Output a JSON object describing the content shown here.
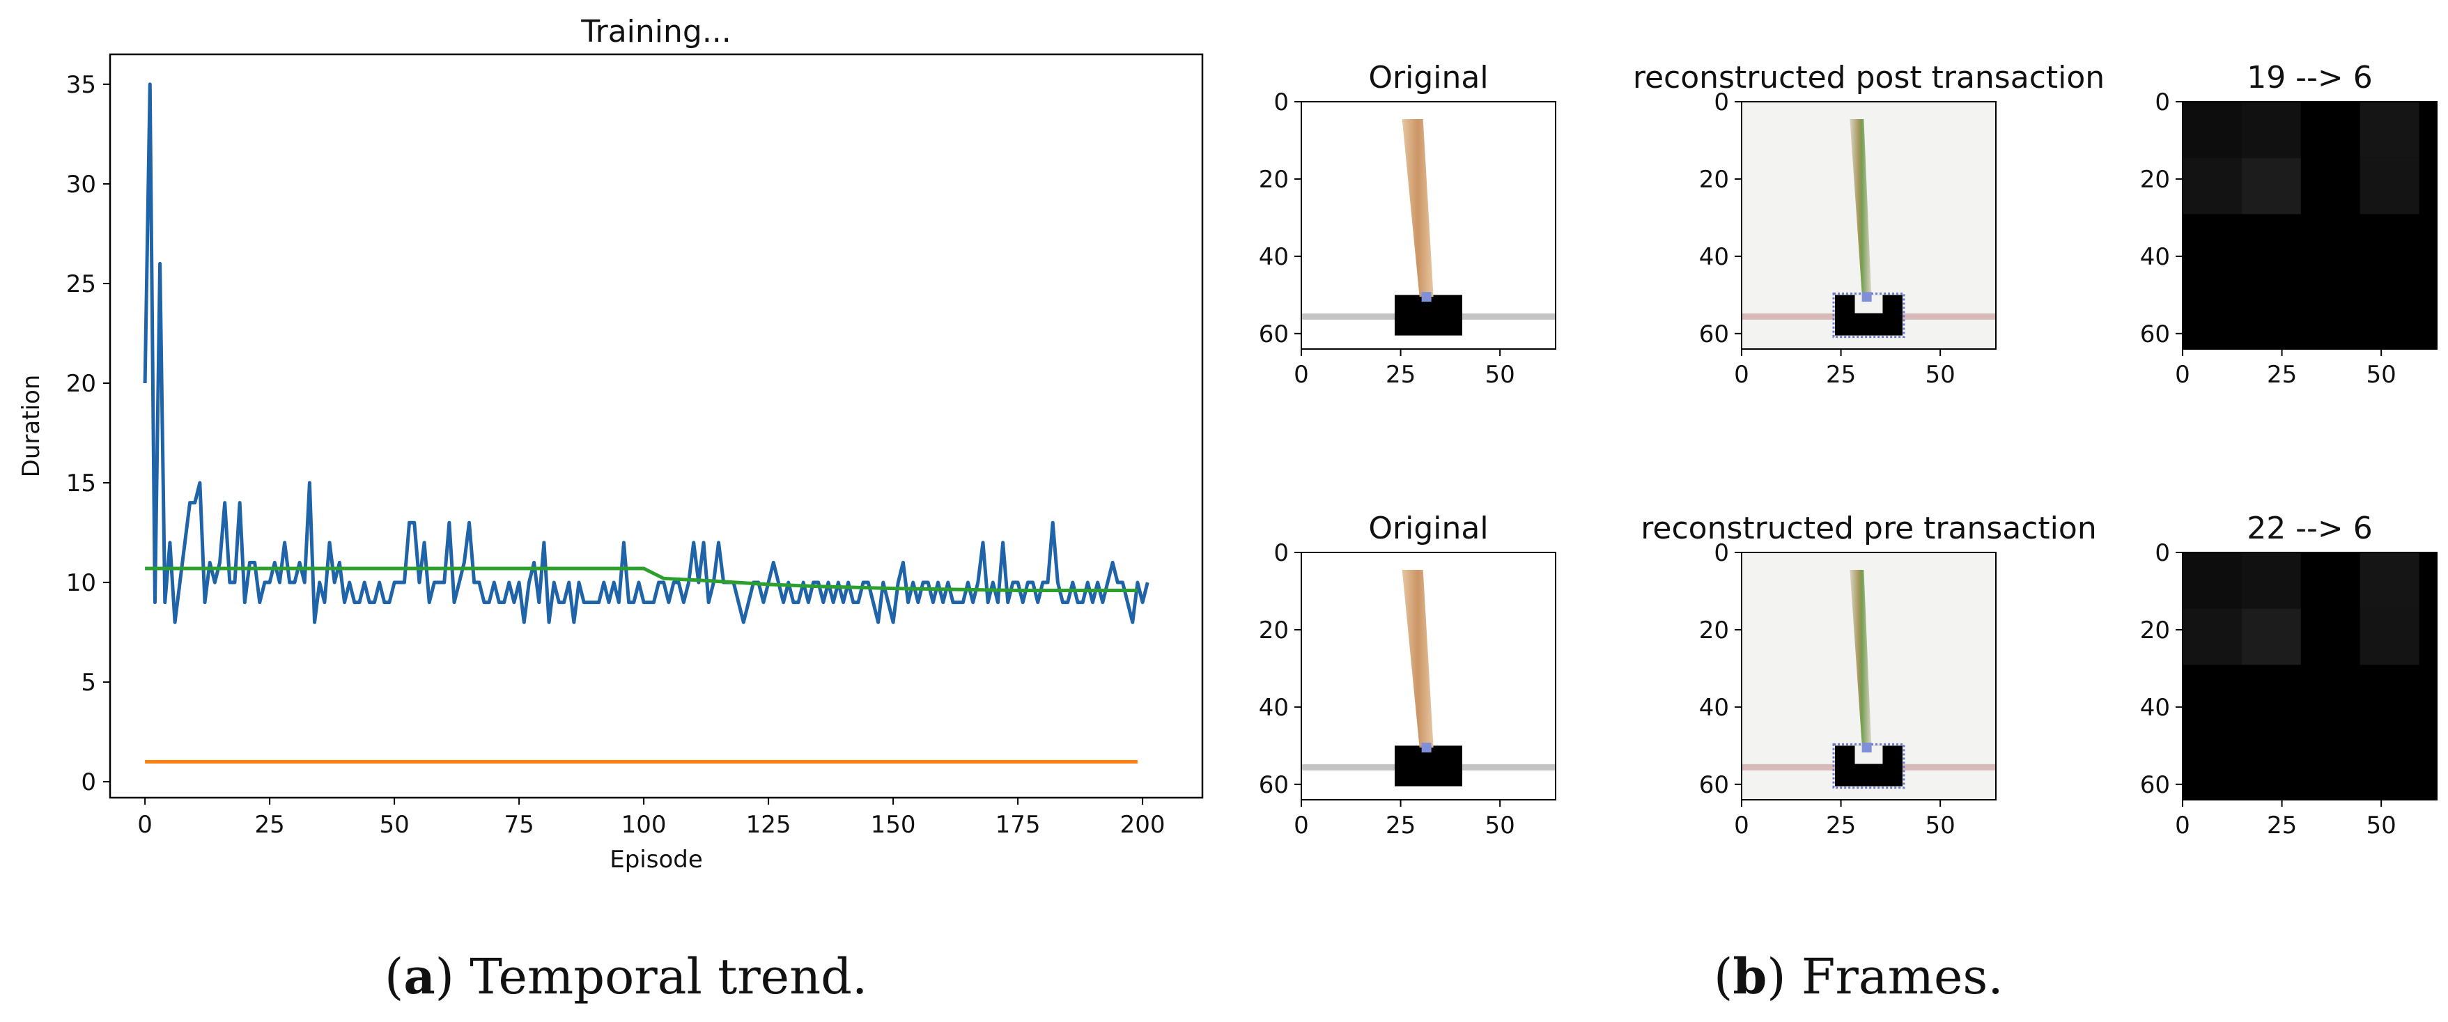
{
  "chart_data": [
    {
      "type": "line",
      "title": "Training...",
      "xlabel": "Episode",
      "ylabel": "Duration",
      "xlim": [
        -7,
        212
      ],
      "ylim": [
        -0.8,
        36.5
      ],
      "xticks": [
        0,
        25,
        50,
        75,
        100,
        125,
        150,
        175,
        200
      ],
      "yticks": [
        0,
        5,
        10,
        15,
        20,
        25,
        30,
        35
      ],
      "grid": false,
      "series": [
        {
          "color": "#1f63a8",
          "x_start": 0,
          "values": [
            20,
            35,
            9,
            26,
            9,
            12,
            8,
            10,
            12,
            14,
            14,
            15,
            9,
            11,
            10,
            11,
            14,
            10,
            10,
            14,
            9,
            11,
            11,
            9,
            10,
            10,
            11,
            10,
            12,
            10,
            10,
            11,
            10,
            15,
            8,
            10,
            9,
            12,
            10,
            11,
            9,
            10,
            9,
            9,
            10,
            9,
            9,
            10,
            9,
            9,
            10,
            10,
            10,
            13,
            13,
            10,
            12,
            9,
            10,
            10,
            10,
            13,
            9,
            10,
            11,
            13,
            10,
            10,
            9,
            9,
            10,
            9,
            9,
            10,
            9,
            10,
            8,
            10,
            11,
            9,
            12,
            8,
            10,
            9,
            9,
            10,
            8,
            10,
            9,
            9,
            9,
            9,
            10,
            9,
            10,
            9,
            12,
            9,
            9,
            10,
            9,
            9,
            9,
            10,
            10,
            9,
            10,
            10,
            9,
            10,
            12,
            10,
            12,
            9,
            10,
            12,
            10,
            10,
            10,
            9,
            8,
            9,
            10,
            10,
            9,
            10,
            11,
            10,
            9,
            10,
            9,
            9,
            10,
            9,
            10,
            10,
            9,
            10,
            9,
            10,
            9,
            10,
            9,
            9,
            10,
            10,
            9,
            8,
            10,
            9,
            8,
            10,
            11,
            9,
            10,
            9,
            10,
            10,
            9,
            10,
            9,
            10,
            9,
            9,
            9,
            10,
            9,
            10,
            12,
            9,
            10,
            9,
            12,
            9,
            10,
            10,
            9,
            10,
            10,
            9,
            10,
            10,
            13,
            10,
            9,
            9,
            10,
            9,
            9,
            10,
            9,
            10,
            9,
            10,
            11,
            10,
            10,
            9,
            8,
            10,
            9,
            10
          ],
          "n_points": 200
        },
        {
          "color": "#2ca02c",
          "points": [
            [
              0,
              10.7
            ],
            [
              100,
              10.7
            ],
            [
              104,
              10.2
            ],
            [
              112,
              10.1
            ],
            [
              125,
              9.9
            ],
            [
              135,
              9.8
            ],
            [
              150,
              9.7
            ],
            [
              175,
              9.6
            ],
            [
              199,
              9.6
            ]
          ]
        },
        {
          "color": "#ff7f0e",
          "points": [
            [
              0,
              1.0
            ],
            [
              199,
              1.0
            ]
          ]
        }
      ]
    },
    {
      "type": "image-grid",
      "panels": [
        {
          "title": "Original",
          "kind": "original",
          "xticks": [
            0,
            25,
            50
          ],
          "yticks": [
            0,
            20,
            40,
            60
          ]
        },
        {
          "title": "reconstructed post transaction",
          "kind": "recon",
          "xticks": [
            0,
            25,
            50
          ],
          "yticks": [
            0,
            20,
            40,
            60
          ]
        },
        {
          "title": "19 --> 6",
          "kind": "dark",
          "xticks": [
            0,
            25,
            50
          ],
          "yticks": [
            0,
            20,
            40,
            60
          ]
        },
        {
          "title": "Original",
          "kind": "original",
          "xticks": [
            0,
            25,
            50
          ],
          "yticks": [
            0,
            20,
            40,
            60
          ]
        },
        {
          "title": "reconstructed pre transaction",
          "kind": "recon",
          "xticks": [
            0,
            25,
            50
          ],
          "yticks": [
            0,
            20,
            40,
            60
          ]
        },
        {
          "title": "22 --> 6",
          "kind": "dark",
          "xticks": [
            0,
            25,
            50
          ],
          "yticks": [
            0,
            20,
            40,
            60
          ]
        }
      ]
    }
  ],
  "captions": {
    "a_letter": "a",
    "a_text": " Temporal trend.",
    "b_letter": "b",
    "b_text": " Frames."
  }
}
